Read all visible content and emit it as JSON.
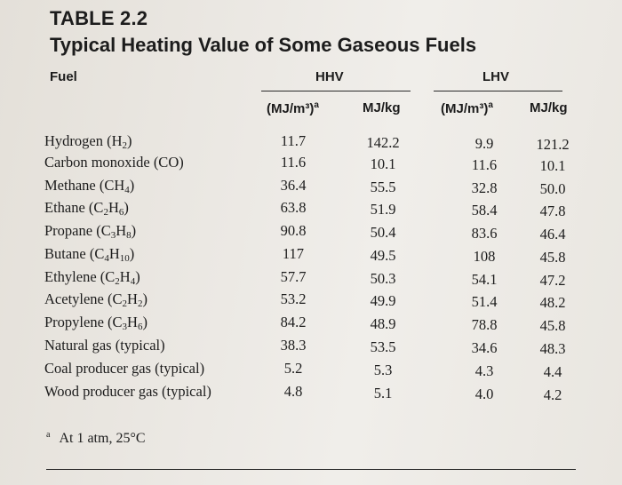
{
  "table": {
    "number": "TABLE 2.2",
    "title": "Typical Heating Value of Some Gaseous Fuels",
    "headers": {
      "fuel": "Fuel",
      "hhv": "HHV",
      "lhv": "LHV"
    },
    "subheaders": {
      "vol": "(MJ/m³)",
      "vol_note": "a",
      "mass": "MJ/kg"
    },
    "rows": [
      {
        "fuel": "Hydrogen (H",
        "formula_sub": "2",
        "formula_tail": ")",
        "hhv_vol": "11.7",
        "hhv_mass": "142.2",
        "lhv_vol": "9.9",
        "lhv_mass": "121.2"
      },
      {
        "fuel": "Carbon monoxide (CO)",
        "formula_sub": "",
        "formula_tail": "",
        "hhv_vol": "11.6",
        "hhv_mass": "10.1",
        "lhv_vol": "11.6",
        "lhv_mass": "10.1"
      },
      {
        "fuel": "Methane (CH",
        "formula_sub": "4",
        "formula_tail": ")",
        "hhv_vol": "36.4",
        "hhv_mass": "55.5",
        "lhv_vol": "32.8",
        "lhv_mass": "50.0"
      },
      {
        "fuel": "Ethane (C",
        "formula_sub": "2",
        "formula_mid": "H",
        "formula_sub2": "6",
        "formula_tail": ")",
        "hhv_vol": "63.8",
        "hhv_mass": "51.9",
        "lhv_vol": "58.4",
        "lhv_mass": "47.8"
      },
      {
        "fuel": "Propane (C",
        "formula_sub": "3",
        "formula_mid": "H",
        "formula_sub2": "8",
        "formula_tail": ")",
        "hhv_vol": "90.8",
        "hhv_mass": "50.4",
        "lhv_vol": "83.6",
        "lhv_mass": "46.4"
      },
      {
        "fuel": "Butane (C",
        "formula_sub": "4",
        "formula_mid": "H",
        "formula_sub2": "10",
        "formula_tail": ")",
        "hhv_vol": "117",
        "hhv_mass": "49.5",
        "lhv_vol": "108",
        "lhv_mass": "45.8"
      },
      {
        "fuel": "Ethylene (C",
        "formula_sub": "2",
        "formula_mid": "H",
        "formula_sub2": "4",
        "formula_tail": ")",
        "hhv_vol": "57.7",
        "hhv_mass": "50.3",
        "lhv_vol": "54.1",
        "lhv_mass": "47.2"
      },
      {
        "fuel": "Acetylene (C",
        "formula_sub": "2",
        "formula_mid": "H",
        "formula_sub2": "2",
        "formula_tail": ")",
        "hhv_vol": "53.2",
        "hhv_mass": "49.9",
        "lhv_vol": "51.4",
        "lhv_mass": "48.2"
      },
      {
        "fuel": "Propylene (C",
        "formula_sub": "3",
        "formula_mid": "H",
        "formula_sub2": "6",
        "formula_tail": ")",
        "hhv_vol": "84.2",
        "hhv_mass": "48.9",
        "lhv_vol": "78.8",
        "lhv_mass": "45.8"
      },
      {
        "fuel": "Natural gas (typical)",
        "formula_sub": "",
        "formula_tail": "",
        "hhv_vol": "38.3",
        "hhv_mass": "53.5",
        "lhv_vol": "34.6",
        "lhv_mass": "48.3"
      },
      {
        "fuel": "Coal producer gas (typical)",
        "formula_sub": "",
        "formula_tail": "",
        "hhv_vol": "5.2",
        "hhv_mass": "5.3",
        "lhv_vol": "4.3",
        "lhv_mass": "4.4"
      },
      {
        "fuel": "Wood producer gas (typical)",
        "formula_sub": "",
        "formula_tail": "",
        "hhv_vol": "4.8",
        "hhv_mass": "5.1",
        "lhv_vol": "4.0",
        "lhv_mass": "4.2"
      }
    ],
    "footnote": {
      "mark": "a",
      "text": "At 1 atm, 25°C"
    }
  }
}
